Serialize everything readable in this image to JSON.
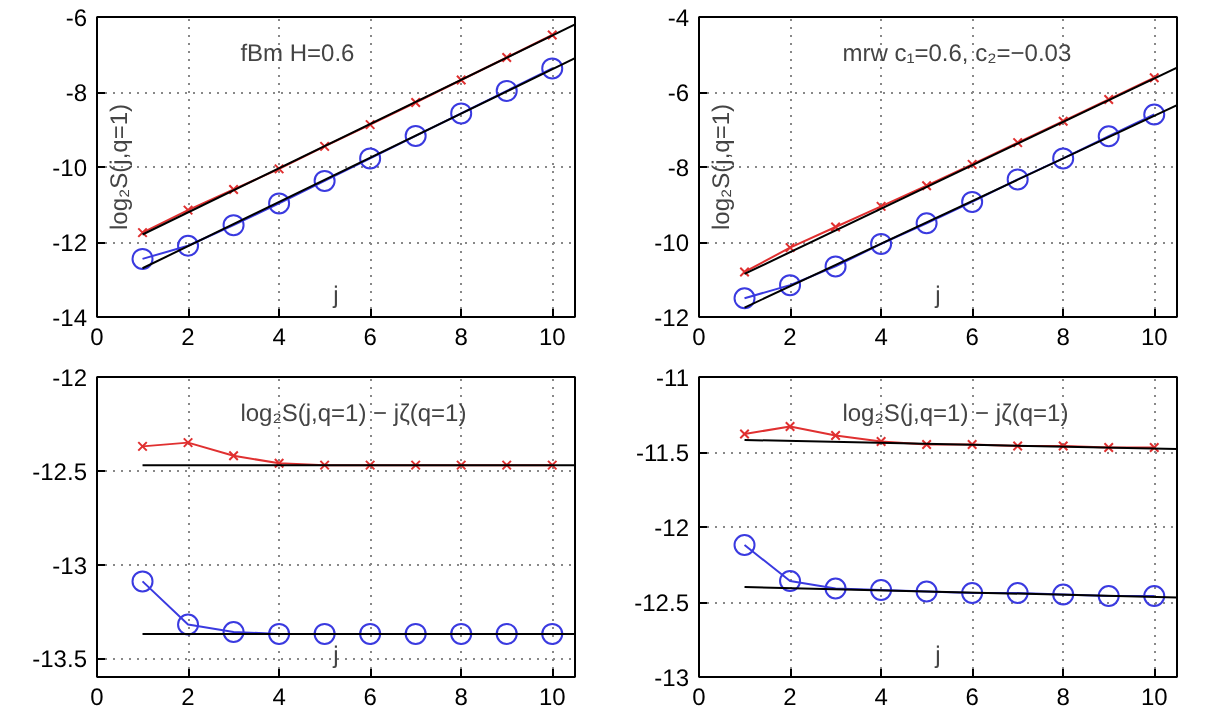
{
  "chart_data": [
    {
      "type": "line",
      "title": "fBm H=0.6",
      "xlabel": "j",
      "ylabel": "log₂S(j,q=1)",
      "xlim": [
        0,
        10.5
      ],
      "ylim": [
        -14,
        -6
      ],
      "xticks": [
        0,
        2,
        4,
        6,
        8,
        10
      ],
      "yticks": [
        -14,
        -12,
        -10,
        -8,
        -6
      ],
      "grid": true,
      "series": [
        {
          "color": "#e03030",
          "marker": "cross",
          "x": [
            1,
            2,
            3,
            4,
            5,
            6,
            7,
            8,
            9,
            10
          ],
          "values": [
            -11.75,
            -11.15,
            -10.6,
            -10.05,
            -9.45,
            -8.87,
            -8.28,
            -7.68,
            -7.08,
            -6.48
          ]
        },
        {
          "color": "#000000",
          "marker": "none",
          "x": [
            1,
            10.5
          ],
          "values": [
            -11.8,
            -6.2
          ]
        },
        {
          "color": "#3a3ae0",
          "marker": "circle",
          "x": [
            1,
            2,
            3,
            4,
            5,
            6,
            7,
            8,
            9,
            10
          ],
          "values": [
            -12.45,
            -12.1,
            -11.55,
            -10.97,
            -10.37,
            -9.77,
            -9.17,
            -8.57,
            -7.97,
            -7.37
          ]
        },
        {
          "color": "#000000",
          "marker": "none",
          "x": [
            1,
            10.5
          ],
          "values": [
            -12.7,
            -7.1
          ]
        }
      ]
    },
    {
      "type": "line",
      "title": "mrw c₁=0.6, c₂=−0.03",
      "xlabel": "j",
      "ylabel": "log₂S(j,q=1)",
      "xlim": [
        0,
        10.5
      ],
      "ylim": [
        -12,
        -4
      ],
      "xticks": [
        0,
        2,
        4,
        6,
        8,
        10
      ],
      "yticks": [
        -12,
        -10,
        -8,
        -6,
        -4
      ],
      "grid": true,
      "series": [
        {
          "color": "#e03030",
          "marker": "cross",
          "x": [
            1,
            2,
            3,
            4,
            5,
            6,
            7,
            8,
            9,
            10
          ],
          "values": [
            -10.8,
            -10.15,
            -9.6,
            -9.05,
            -8.5,
            -7.93,
            -7.35,
            -6.78,
            -6.2,
            -5.62
          ]
        },
        {
          "color": "#000000",
          "marker": "none",
          "x": [
            1,
            10.5
          ],
          "values": [
            -10.85,
            -5.35
          ]
        },
        {
          "color": "#3a3ae0",
          "marker": "circle",
          "x": [
            1,
            2,
            3,
            4,
            5,
            6,
            7,
            8,
            9,
            10
          ],
          "values": [
            -11.5,
            -11.15,
            -10.65,
            -10.05,
            -9.5,
            -8.93,
            -8.33,
            -7.77,
            -7.18,
            -6.6
          ]
        },
        {
          "color": "#000000",
          "marker": "none",
          "x": [
            1,
            10.5
          ],
          "values": [
            -11.75,
            -6.35
          ]
        }
      ]
    },
    {
      "type": "line",
      "title": "log₂S(j,q=1) − jζ(q=1)",
      "xlabel": "j",
      "xlim": [
        0,
        10.5
      ],
      "ylim": [
        -13.6,
        -12
      ],
      "xticks": [
        0,
        2,
        4,
        6,
        8,
        10
      ],
      "yticks": [
        -13.5,
        -13,
        -12.5,
        -12
      ],
      "grid": true,
      "series": [
        {
          "color": "#e03030",
          "marker": "cross",
          "x": [
            1,
            2,
            3,
            4,
            5,
            6,
            7,
            8,
            9,
            10
          ],
          "values": [
            -12.37,
            -12.35,
            -12.42,
            -12.46,
            -12.47,
            -12.47,
            -12.47,
            -12.47,
            -12.47,
            -12.47
          ]
        },
        {
          "color": "#000000",
          "marker": "none",
          "x": [
            1,
            10.5
          ],
          "values": [
            -12.47,
            -12.47
          ]
        },
        {
          "color": "#3a3ae0",
          "marker": "circle",
          "x": [
            1,
            2,
            3,
            4,
            5,
            6,
            7,
            8,
            9,
            10
          ],
          "values": [
            -13.09,
            -13.32,
            -13.36,
            -13.37,
            -13.37,
            -13.37,
            -13.37,
            -13.37,
            -13.37,
            -13.37
          ]
        },
        {
          "color": "#000000",
          "marker": "none",
          "x": [
            1,
            10.5
          ],
          "values": [
            -13.37,
            -13.37
          ]
        }
      ]
    },
    {
      "type": "line",
      "title": "log₂S(j,q=1) − jζ(q=1)",
      "xlabel": "j",
      "xlim": [
        0,
        10.5
      ],
      "ylim": [
        -13,
        -11
      ],
      "xticks": [
        0,
        2,
        4,
        6,
        8,
        10
      ],
      "yticks": [
        -13,
        -12.5,
        -12,
        -11.5,
        -11
      ],
      "grid": true,
      "series": [
        {
          "color": "#e03030",
          "marker": "cross",
          "x": [
            1,
            2,
            3,
            4,
            5,
            6,
            7,
            8,
            9,
            10
          ],
          "values": [
            -11.38,
            -11.33,
            -11.39,
            -11.43,
            -11.45,
            -11.45,
            -11.46,
            -11.46,
            -11.47,
            -11.47
          ]
        },
        {
          "color": "#000000",
          "marker": "none",
          "x": [
            1,
            10.5
          ],
          "values": [
            -11.42,
            -11.48
          ]
        },
        {
          "color": "#3a3ae0",
          "marker": "circle",
          "x": [
            1,
            2,
            3,
            4,
            5,
            6,
            7,
            8,
            9,
            10
          ],
          "values": [
            -12.12,
            -12.36,
            -12.41,
            -12.42,
            -12.43,
            -12.44,
            -12.44,
            -12.45,
            -12.46,
            -12.46
          ]
        },
        {
          "color": "#000000",
          "marker": "none",
          "x": [
            1,
            10.5
          ],
          "values": [
            -12.4,
            -12.47
          ]
        }
      ]
    }
  ]
}
